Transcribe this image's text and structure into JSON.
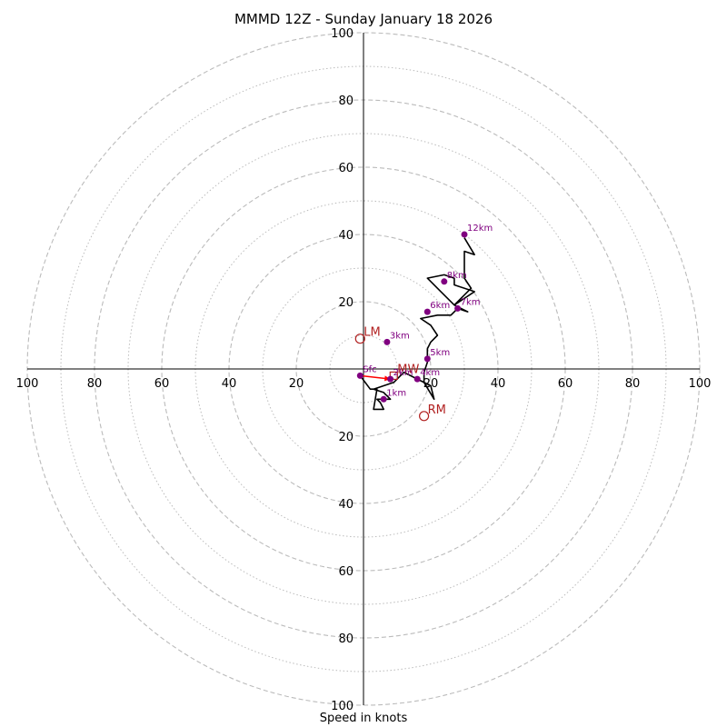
{
  "chart_data": {
    "type": "hodograph",
    "title": "MMMD 12Z - Sunday January 18 2026",
    "xlabel": "Speed in knots",
    "ylabel": "",
    "xlim": [
      -100,
      100
    ],
    "ylim": [
      -100,
      100
    ],
    "ring_major": [
      20,
      40,
      60,
      80,
      100
    ],
    "ring_minor": [
      10,
      30,
      50,
      70,
      90
    ],
    "x_tick_labels": [
      "100",
      "80",
      "60",
      "40",
      "20",
      "20",
      "40",
      "60",
      "80",
      "100"
    ],
    "x_tick_values": [
      -100,
      -80,
      -60,
      -40,
      -20,
      20,
      40,
      60,
      80,
      100
    ],
    "y_tick_labels": [
      "100",
      "80",
      "60",
      "40",
      "20",
      "20",
      "40",
      "60",
      "80",
      "100"
    ],
    "y_tick_values": [
      100,
      80,
      60,
      40,
      20,
      -20,
      -40,
      -60,
      -80,
      -100
    ],
    "hodograph_line": [
      [
        -1,
        -2
      ],
      [
        2,
        -6
      ],
      [
        4,
        -6
      ],
      [
        3,
        -12
      ],
      [
        6,
        -12
      ],
      [
        5,
        -10
      ],
      [
        4,
        -9
      ],
      [
        8,
        -9
      ],
      [
        6,
        -7
      ],
      [
        3,
        -6
      ],
      [
        9,
        -4
      ],
      [
        12,
        -1
      ],
      [
        16,
        -3
      ],
      [
        20,
        -5
      ],
      [
        21,
        -9
      ],
      [
        18,
        -4
      ],
      [
        18,
        -1
      ],
      [
        19,
        2
      ],
      [
        19,
        6
      ],
      [
        20,
        8
      ],
      [
        22,
        10
      ],
      [
        20,
        13
      ],
      [
        17,
        15
      ],
      [
        22,
        16
      ],
      [
        26,
        16
      ],
      [
        28,
        18
      ],
      [
        31,
        17
      ],
      [
        27,
        19
      ],
      [
        33,
        23
      ],
      [
        27,
        25
      ],
      [
        27,
        27
      ],
      [
        24,
        28
      ],
      [
        19,
        27
      ],
      [
        23,
        23
      ],
      [
        27,
        19
      ],
      [
        29,
        21
      ],
      [
        32,
        24
      ],
      [
        30,
        27
      ],
      [
        30,
        31
      ],
      [
        30,
        35
      ],
      [
        33,
        34
      ],
      [
        30,
        39
      ]
    ],
    "hodograph_line_lower": [
      [
        -1,
        -2
      ],
      [
        2,
        -6
      ],
      [
        4,
        -6
      ],
      [
        3,
        -12
      ],
      [
        6,
        -12
      ],
      [
        5,
        -10
      ],
      [
        4,
        -9
      ],
      [
        8,
        -9
      ],
      [
        6,
        -7
      ],
      [
        3,
        -6
      ]
    ],
    "height_markers": [
      {
        "label": "Sfc",
        "x": -1,
        "y": -2
      },
      {
        "label": "1km",
        "x": 6,
        "y": -9
      },
      {
        "label": "2km",
        "x": 8,
        "y": -3
      },
      {
        "label": "3km",
        "x": 7,
        "y": 8
      },
      {
        "label": "4km",
        "x": 16,
        "y": -3
      },
      {
        "label": "5km",
        "x": 19,
        "y": 3
      },
      {
        "label": "6km",
        "x": 19,
        "y": 17
      },
      {
        "label": "7km",
        "x": 28,
        "y": 18
      },
      {
        "label": "8km",
        "x": 24,
        "y": 26
      },
      {
        "label": "12km",
        "x": 30,
        "y": 40
      }
    ],
    "motion_markers": [
      {
        "label": "LM",
        "x": -1,
        "y": 9,
        "shape": "circle"
      },
      {
        "label": "RM",
        "x": 18,
        "y": -14,
        "shape": "circle"
      },
      {
        "label": "MW",
        "x": 9,
        "y": -2,
        "shape": "square"
      }
    ],
    "shear_vector": {
      "from": [
        -1,
        -2
      ],
      "to": [
        8,
        -3
      ]
    },
    "colors": {
      "grid": "#bbbbbb",
      "line": "#000000",
      "marker": "#800080",
      "motion": "#b22222",
      "vector": "#ff0000"
    }
  }
}
